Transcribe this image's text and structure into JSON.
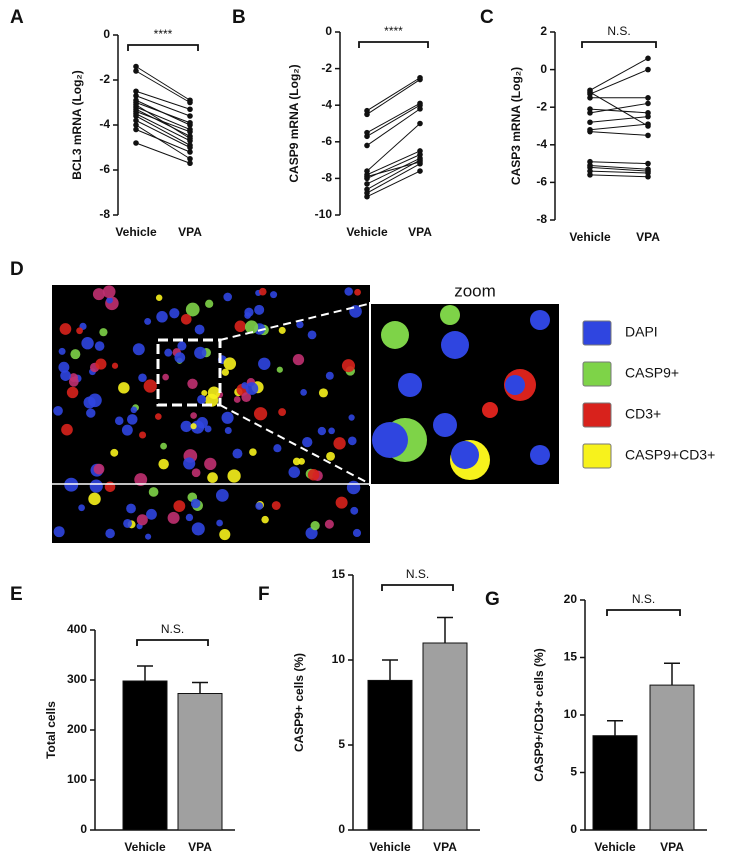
{
  "chart_data": [
    {
      "type": "paired",
      "panel_label": "A",
      "ylabel": "BCL3 mRNA (Log₂)",
      "annotation": "****",
      "categories": [
        "Vehicle",
        "VPA"
      ],
      "color": "#111111",
      "pairs": [
        [
          -1.4,
          -2.9
        ],
        [
          -1.6,
          -3.0
        ],
        [
          -2.5,
          -3.3
        ],
        [
          -2.7,
          -3.6
        ],
        [
          -2.9,
          -4.0
        ],
        [
          -3.0,
          -3.9
        ],
        [
          -3.2,
          -4.2
        ],
        [
          -3.3,
          -4.5
        ],
        [
          -3.4,
          -4.3
        ],
        [
          -3.5,
          -4.7
        ],
        [
          -3.6,
          -4.9
        ],
        [
          -3.8,
          -5.0
        ],
        [
          -4.0,
          -5.5
        ],
        [
          -4.2,
          -5.2
        ],
        [
          -4.8,
          -5.7
        ],
        [
          -3.1,
          -4.6
        ]
      ],
      "ylim": [
        -8,
        0
      ],
      "yticks": [
        -8,
        -6,
        -4,
        -2,
        0
      ]
    },
    {
      "type": "paired",
      "panel_label": "B",
      "ylabel": "CASP9 mRNA (Log₂)",
      "annotation": "****",
      "categories": [
        "Vehicle",
        "VPA"
      ],
      "color": "#111111",
      "pairs": [
        [
          -4.3,
          -2.5
        ],
        [
          -4.5,
          -2.6
        ],
        [
          -5.5,
          -3.9
        ],
        [
          -5.7,
          -4.0
        ],
        [
          -6.2,
          -4.2
        ],
        [
          -7.6,
          -5.0
        ],
        [
          -7.8,
          -6.5
        ],
        [
          -8.0,
          -6.7
        ],
        [
          -8.3,
          -6.9
        ],
        [
          -8.6,
          -7.0
        ],
        [
          -8.8,
          -7.2
        ],
        [
          -9.0,
          -7.6
        ],
        [
          -7.9,
          -7.1
        ]
      ],
      "ylim": [
        -10,
        0
      ],
      "yticks": [
        -10,
        -8,
        -6,
        -4,
        -2,
        0
      ]
    },
    {
      "type": "paired",
      "panel_label": "C",
      "ylabel": "CASP3 mRNA (Log₂)",
      "annotation": "N.S.",
      "categories": [
        "Vehicle",
        "VPA"
      ],
      "color": "#111111",
      "pairs": [
        [
          -1.1,
          0.6
        ],
        [
          -1.3,
          0.0
        ],
        [
          -1.5,
          -1.5
        ],
        [
          -2.1,
          -2.3
        ],
        [
          -2.8,
          -2.5
        ],
        [
          -3.2,
          -2.9
        ],
        [
          -3.3,
          -3.5
        ],
        [
          -4.9,
          -5.0
        ],
        [
          -5.1,
          -5.3
        ],
        [
          -5.2,
          -5.4
        ],
        [
          -5.4,
          -5.5
        ],
        [
          -5.6,
          -5.7
        ],
        [
          -2.3,
          -1.8
        ],
        [
          -1.2,
          -3.0
        ]
      ],
      "ylim": [
        -8,
        2
      ],
      "yticks": [
        -8,
        -6,
        -4,
        -2,
        0,
        2
      ]
    },
    {
      "type": "image",
      "panel_label": "D",
      "zoom_label": "zoom",
      "legend": [
        {
          "label": "DAPI",
          "color": "#2f45e0"
        },
        {
          "label": "CASP9+",
          "color": "#7ed348"
        },
        {
          "label": "CD3+",
          "color": "#d8221c"
        },
        {
          "label": "CASP9+CD3+",
          "color": "#f7f21c"
        }
      ]
    },
    {
      "type": "bar",
      "panel_label": "E",
      "ylabel": "Total cells",
      "annotation": "N.S.",
      "categories": [
        "Vehicle",
        "VPA"
      ],
      "values": [
        298,
        273
      ],
      "errors": [
        30,
        22
      ],
      "colors": [
        "#000000",
        "#a0a0a0"
      ],
      "ylim": [
        0,
        400
      ],
      "yticks": [
        0,
        100,
        200,
        300,
        400
      ]
    },
    {
      "type": "bar",
      "panel_label": "F",
      "ylabel": "CASP9+ cells (%)",
      "annotation": "N.S.",
      "categories": [
        "Vehicle",
        "VPA"
      ],
      "values": [
        8.8,
        11.0
      ],
      "errors": [
        1.2,
        1.5
      ],
      "colors": [
        "#000000",
        "#a0a0a0"
      ],
      "ylim": [
        0,
        15
      ],
      "yticks": [
        0,
        5,
        10,
        15
      ]
    },
    {
      "type": "bar",
      "panel_label": "G",
      "ylabel": "CASP9+/CD3+ cells (%)",
      "annotation": "N.S.",
      "categories": [
        "Vehicle",
        "VPA"
      ],
      "values": [
        8.2,
        12.6
      ],
      "errors": [
        1.3,
        1.9
      ],
      "colors": [
        "#000000",
        "#a0a0a0"
      ],
      "ylim": [
        0,
        20
      ],
      "yticks": [
        0,
        5,
        10,
        15,
        20
      ]
    }
  ]
}
